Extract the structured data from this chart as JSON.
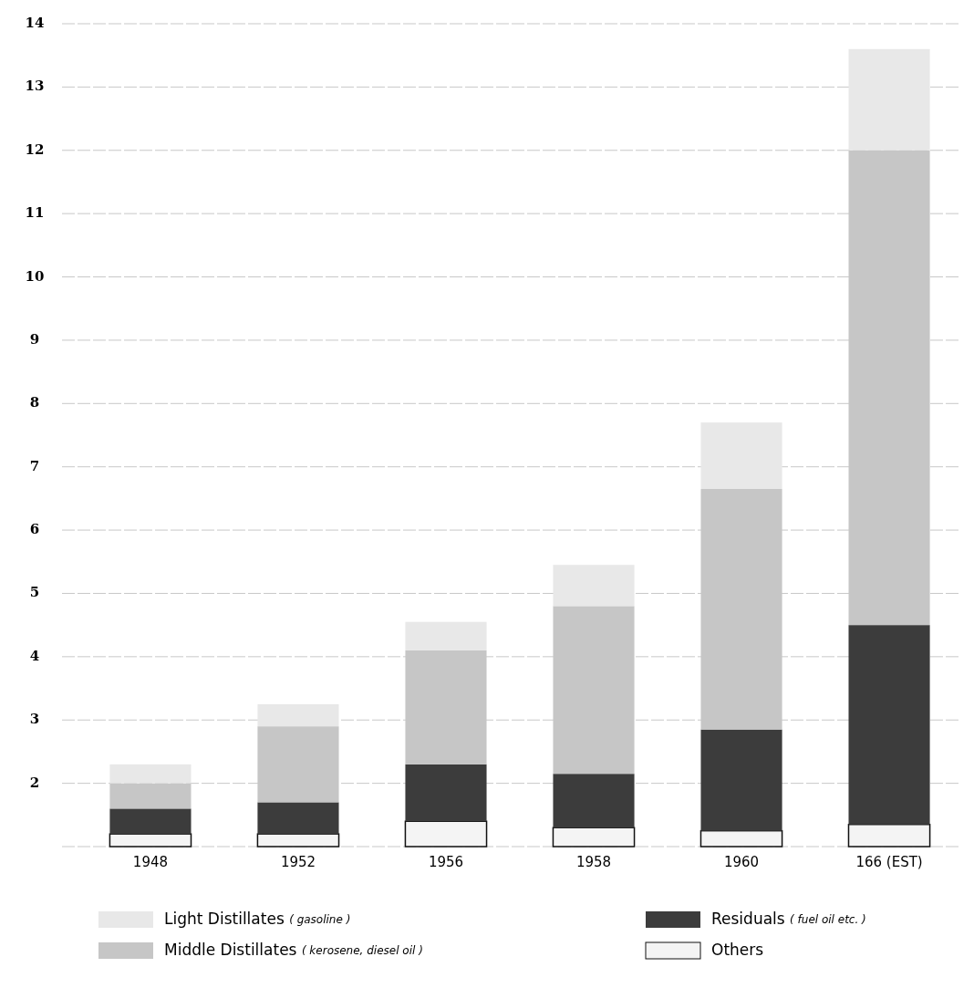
{
  "chart_data": {
    "type": "bar",
    "categories": [
      "1948",
      "1952",
      "1956",
      "1958",
      "1960",
      "166 (EST)"
    ],
    "series": [
      {
        "name": "Others",
        "color": "#f4f4f4",
        "base": [
          1,
          1,
          1,
          1,
          1,
          1
        ],
        "values": [
          0.2,
          0.2,
          0.4,
          0.3,
          0.25,
          0.35
        ]
      },
      {
        "name": "Residuals ( fuel oil etc. )",
        "color": "#3c3c3c",
        "base": [
          1.2,
          1.2,
          1.4,
          1.3,
          1.25,
          1.35
        ],
        "values": [
          0.4,
          0.5,
          0.9,
          0.85,
          1.6,
          3.15
        ]
      },
      {
        "name": "Middle Distillates ( kerosene, diesel oil )",
        "color": "#c6c6c6",
        "base": [
          1.6,
          1.7,
          2.3,
          2.15,
          2.85,
          4.5
        ],
        "values": [
          0.4,
          1.2,
          1.8,
          2.65,
          3.8,
          7.5
        ]
      },
      {
        "name": "Light Distillates ( gasoline )",
        "color": "#e8e8e8",
        "base": [
          2.0,
          2.9,
          4.1,
          4.8,
          6.65,
          12.0
        ],
        "values": [
          0.3,
          0.35,
          0.45,
          0.65,
          1.05,
          1.6
        ]
      }
    ],
    "ylim": [
      1,
      14
    ],
    "yticks": [
      {
        "value": 1,
        "label": null
      },
      2,
      3,
      4,
      5,
      6,
      7,
      8,
      9,
      10,
      11,
      12,
      13,
      14
    ],
    "grid": "y",
    "legend": "bottom"
  }
}
